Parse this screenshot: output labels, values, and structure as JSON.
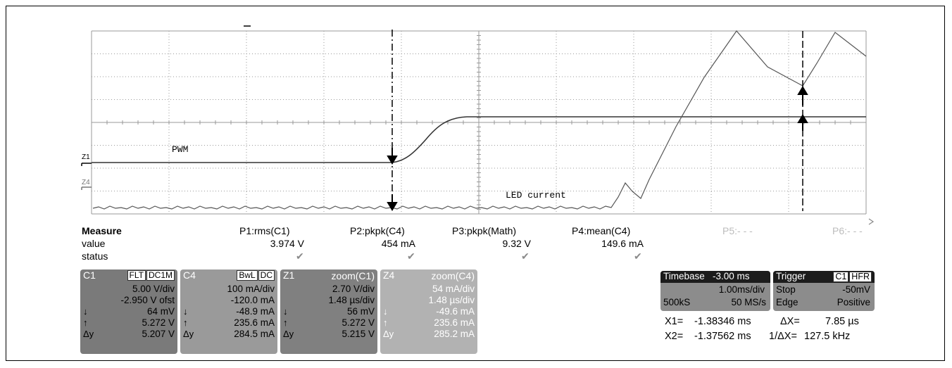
{
  "traces": {
    "pwm_label": "PWM",
    "led_label": "LED current",
    "z1_marker": "Z1",
    "z4_marker": "Z4"
  },
  "measure": {
    "header": "Measure",
    "row_value": "value",
    "row_status": "status",
    "params": [
      {
        "name": "P1:rms(C1)",
        "value": "3.974 V",
        "status": "✔"
      },
      {
        "name": "P2:pkpk(C4)",
        "value": "454 mA",
        "status": "✔"
      },
      {
        "name": "P3:pkpk(Math)",
        "value": "9.32 V",
        "status": "✔"
      },
      {
        "name": "P4:mean(C4)",
        "value": "149.6 mA",
        "status": "✔"
      },
      {
        "name": "P5:- - -",
        "value": "",
        "status": ""
      },
      {
        "name": "P6:- - -",
        "value": "",
        "status": ""
      }
    ]
  },
  "channels": [
    {
      "name": "C1",
      "tags": [
        "FLT",
        "DC1M"
      ],
      "scale": "5.00 V/div",
      "offset": "-2.950 V ofst",
      "down": "64 mV",
      "up": "5.272 V",
      "dy_sym": "Δy",
      "dy": "5.207 V"
    },
    {
      "name": "C4",
      "tags": [
        "BwL",
        "DC"
      ],
      "scale": "100 mA/div",
      "offset": "-120.0 mA",
      "down": "-48.9 mA",
      "up": "235.6 mA",
      "dy_sym": "Δy",
      "dy": "284.5 mA"
    },
    {
      "name": "Z1",
      "tags": [
        "zoom(C1)"
      ],
      "scale": "2.70 V/div",
      "offset": "1.48 µs/div",
      "down": "56 mV",
      "up": "5.272 V",
      "dy_sym": "Δy",
      "dy": "5.215 V"
    },
    {
      "name": "Z4",
      "tags": [
        "zoom(C4)"
      ],
      "scale": "54 mA/div",
      "offset": "1.48 µs/div",
      "down": "-49.6 mA",
      "up": "235.6 mA",
      "dy_sym": "Δy",
      "dy": "285.2 mA"
    }
  ],
  "timebase": {
    "label": "Timebase",
    "delay": "-3.00 ms",
    "per_div": "1.00ms/div",
    "samples": "500kS",
    "rate": "50 MS/s"
  },
  "trigger": {
    "label": "Trigger",
    "source": "C1",
    "coupling": "HFR",
    "mode": "Stop",
    "level": "-50mV",
    "type": "Edge",
    "slope": "Positive"
  },
  "cursors": {
    "x1_label": "X1=",
    "x1": "-1.38346 ms",
    "dx_label": "ΔX=",
    "dx": "7.85 µs",
    "x2_label": "X2=",
    "x2": "-1.37562 ms",
    "inv_dx_label": "1/ΔX=",
    "inv_dx": "127.5 kHz"
  },
  "colors": {
    "grid": "#9a9a9a",
    "trace": "#333333",
    "c1_box": "#7a7a7a",
    "c4_box": "#9a9a9a",
    "z1_box": "#808080",
    "z4_box": "#b2b2b2",
    "dark_header": "#1c1c1c"
  }
}
